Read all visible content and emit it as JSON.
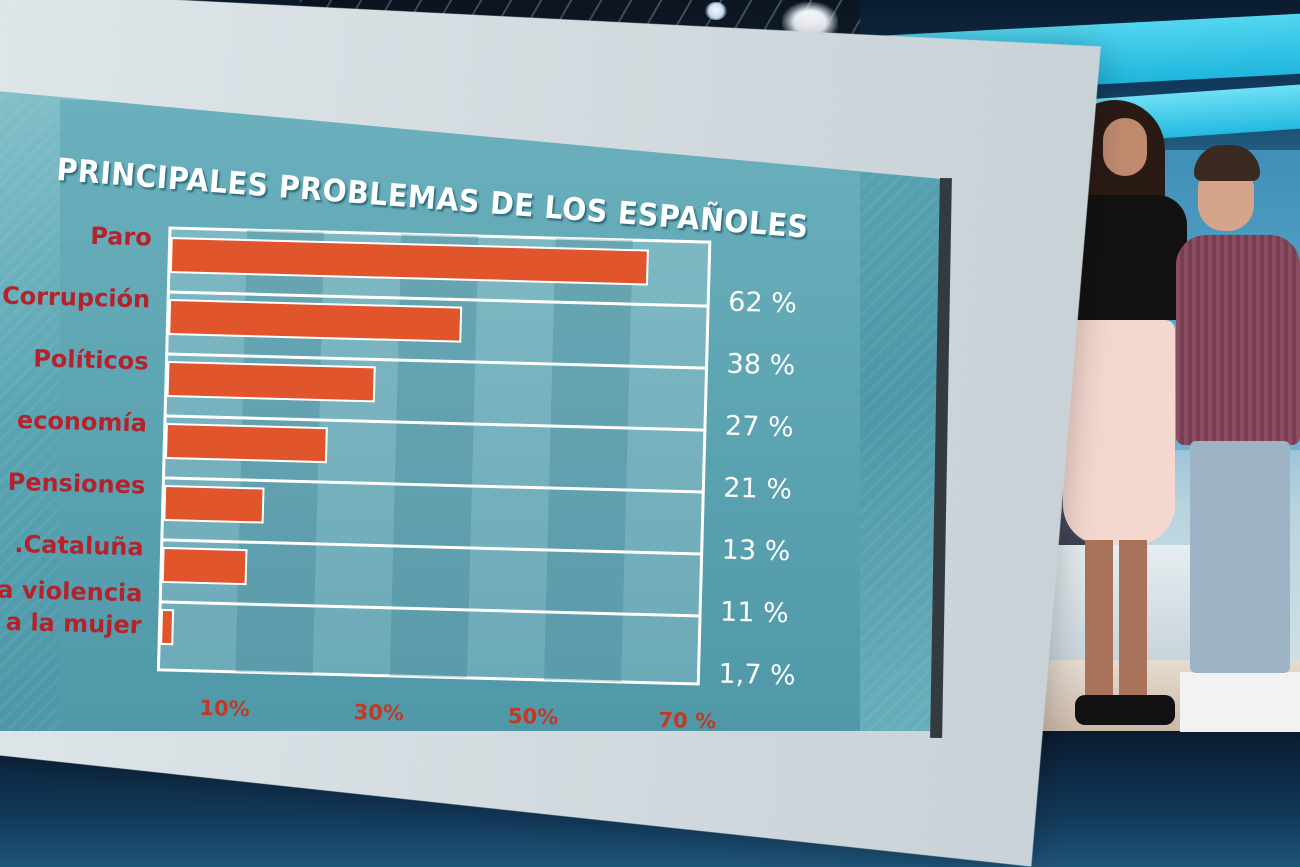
{
  "colors": {
    "bar": "#e0552c",
    "bar_edge": "#ffffff",
    "category_text": "#b4232c",
    "value_text": "#ffffff",
    "tick_text": "#c23a26",
    "title_text": "#ffffff"
  },
  "chart_data": {
    "type": "bar",
    "orientation": "horizontal",
    "title": "PRINCIPALES PROBLEMAS DE LOS ESPAÑOLES",
    "categories": [
      "Paro",
      "Corrupción",
      "Políticos",
      "economía",
      "Pensiones",
      ".Cataluña",
      "a violencia a la mujer"
    ],
    "category_lines": [
      [
        "Paro"
      ],
      [
        "Corrupción"
      ],
      [
        "Políticos"
      ],
      [
        "economía"
      ],
      [
        "Pensiones"
      ],
      [
        ".Cataluña"
      ],
      [
        "a violencia",
        "a la mujer"
      ]
    ],
    "values": [
      62,
      38,
      27,
      21,
      13,
      11,
      1.7
    ],
    "value_labels": [
      "62 %",
      "38 %",
      "27 %",
      "21 %",
      "13 %",
      "11 %",
      "1,7 %"
    ],
    "xlim": [
      0,
      70
    ],
    "x_ticks": [
      10,
      30,
      50,
      70
    ],
    "x_tick_labels": [
      "10%",
      "30%",
      "50%",
      "70 %"
    ],
    "grid": true,
    "legend": "none"
  }
}
